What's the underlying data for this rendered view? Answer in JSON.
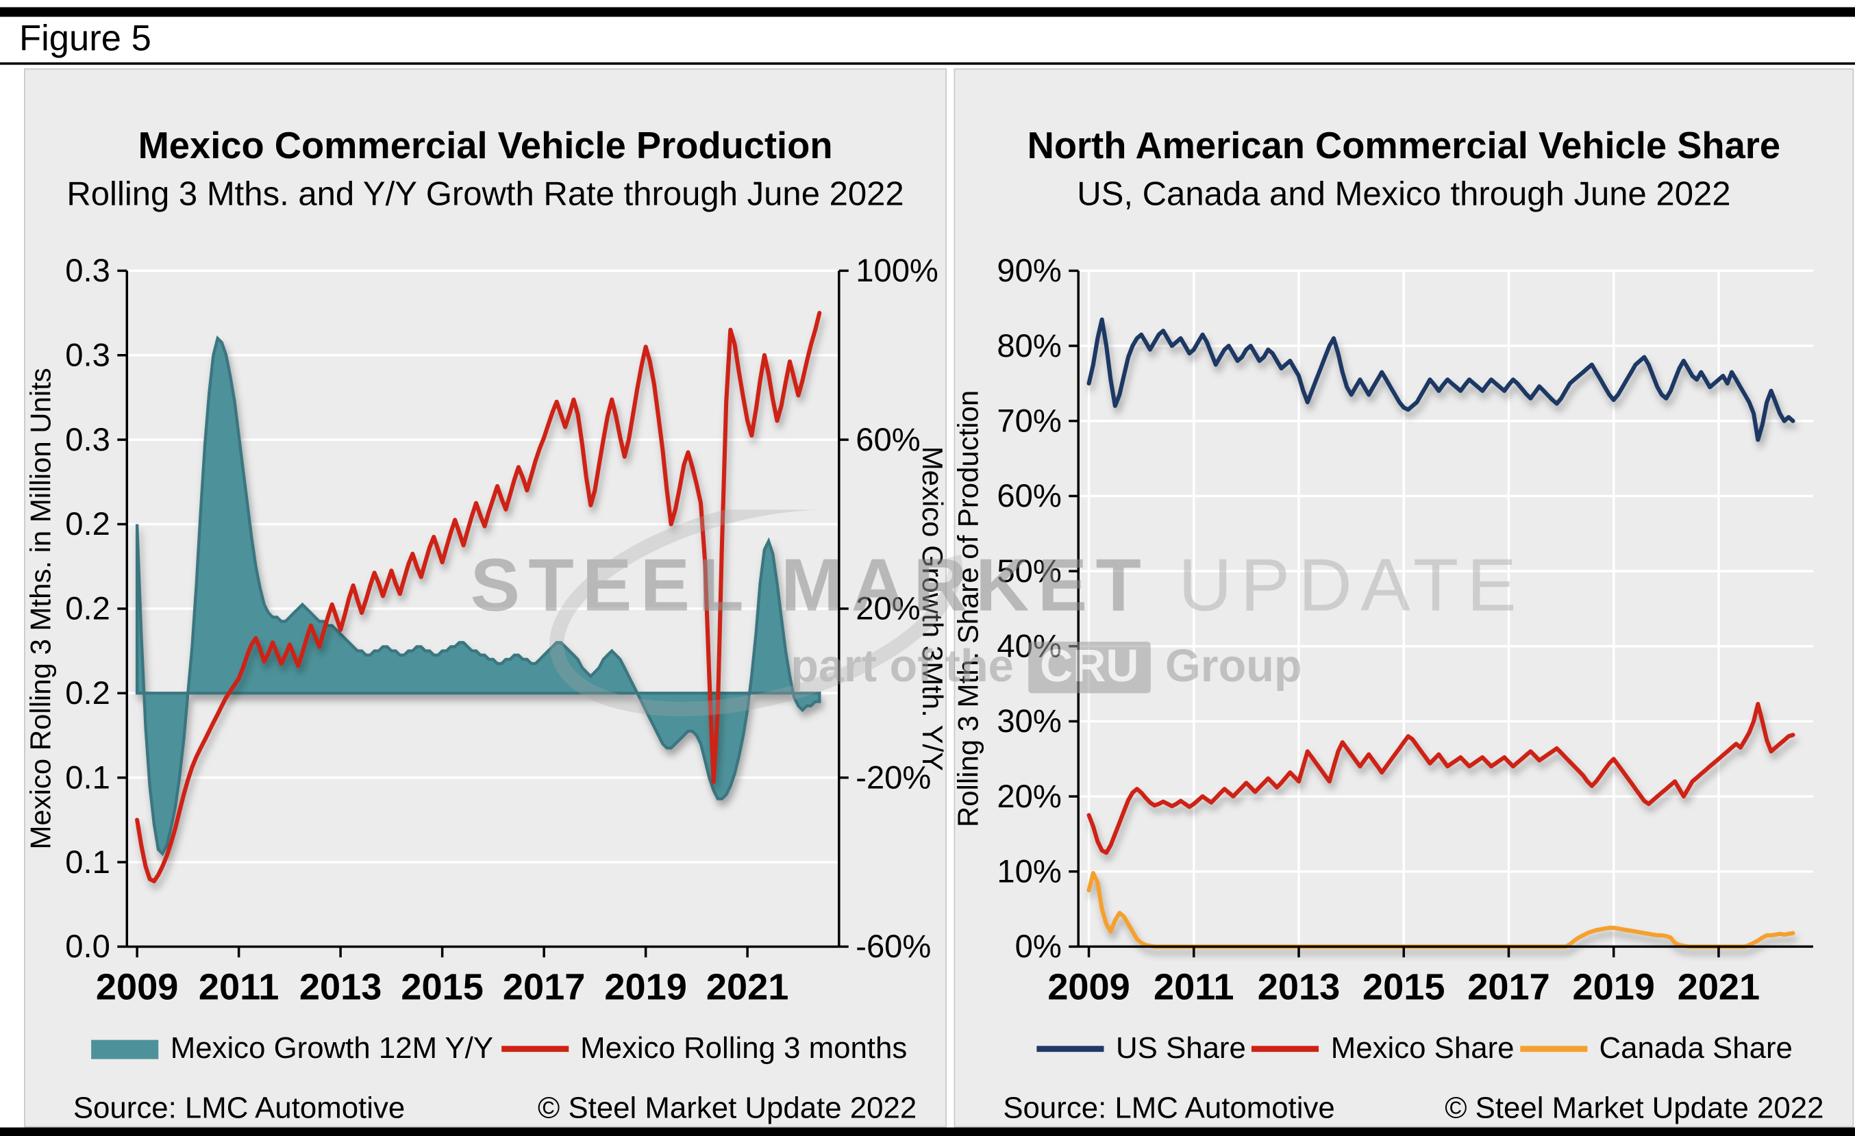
{
  "figure": {
    "label": "Figure 5"
  },
  "watermark": {
    "word1": "STEEL",
    "word2": "MARKET",
    "word3": "UPDATE",
    "tagline_pre": "part of the",
    "tagline_logo": "CRU",
    "tagline_post": "Group"
  },
  "panels": {
    "left": {
      "source": "Source: LMC Automotive",
      "copyright": "© Steel Market Update 2022"
    },
    "right": {
      "source": "Source: LMC Automotive",
      "copyright": "© Steel Market Update 2022"
    }
  },
  "chart_data": [
    {
      "id": "mexico-production",
      "type": "line",
      "title": "Mexico Commercial Vehicle Production",
      "subtitle": "Rolling 3 Mths. and Y/Y Growth Rate through June 2022",
      "x_unit": "monthly, Jan 2009 - Jun 2022",
      "x_start": 2009.0,
      "x_step": 0.0833333,
      "x_domain": [
        2008.8,
        2022.8
      ],
      "x_ticks": [
        2009,
        2011,
        2013,
        2015,
        2017,
        2019,
        2021
      ],
      "grid": {
        "h_lines": 9,
        "v_lines": false
      },
      "axes": {
        "left": {
          "title": "Mexico Rolling 3 Mths. in Million Units",
          "domain": [
            0,
            0.32
          ],
          "title_offset": 64,
          "tick_labels_bottom_up": [
            "0.0",
            "0.1",
            "0.1",
            "0.2",
            "0.2",
            "0.2",
            "0.3",
            "0.3",
            "0.3"
          ]
        },
        "right": {
          "title": "Mexico Growth 3Mth. Y/Y",
          "domain": [
            -60,
            100
          ],
          "title_offset": 70,
          "tick_labels_bottom_up": [
            "-60%",
            "-20%",
            "20%",
            "60%",
            "100%"
          ]
        }
      },
      "series": [
        {
          "name": "Mexico Growth 12M Y/Y",
          "type": "area",
          "axis": "right",
          "unit": "%",
          "color": "#4D929A",
          "edge": "#3A7680",
          "values": [
            40,
            14,
            -8,
            -22,
            -31,
            -37,
            -38,
            -36,
            -32,
            -27,
            -20,
            -11,
            0,
            11,
            26,
            43,
            59,
            71,
            80,
            84,
            83,
            80,
            75,
            69,
            61,
            53,
            45,
            37,
            30,
            25,
            21,
            19,
            18,
            18,
            17,
            17,
            18,
            19,
            20,
            21,
            20,
            19,
            18,
            17,
            17,
            16,
            16,
            15,
            14,
            13,
            12,
            11,
            10,
            10,
            9,
            9,
            10,
            10,
            11,
            11,
            10,
            10,
            9,
            9,
            10,
            10,
            11,
            11,
            10,
            10,
            9,
            9,
            10,
            10,
            11,
            11,
            12,
            12,
            11,
            10,
            10,
            9,
            9,
            8,
            8,
            7,
            7,
            8,
            8,
            9,
            9,
            8,
            8,
            7,
            7,
            8,
            9,
            10,
            11,
            12,
            12,
            11,
            10,
            9,
            8,
            6,
            5,
            4,
            5,
            6,
            8,
            9,
            10,
            9,
            8,
            6,
            4,
            2,
            0,
            -2,
            -4,
            -6,
            -8,
            -10,
            -12,
            -13,
            -13,
            -12,
            -11,
            -10,
            -9,
            -9,
            -10,
            -12,
            -16,
            -20,
            -23,
            -25,
            -25,
            -24,
            -22,
            -19,
            -15,
            -10,
            -4,
            4,
            14,
            26,
            34,
            36,
            33,
            26,
            18,
            10,
            4,
            -1,
            -3,
            -4,
            -3,
            -3,
            -2,
            -2
          ]
        },
        {
          "name": "Mexico Rolling 3 months",
          "type": "line",
          "axis": "left",
          "unit": "million units",
          "color": "#CE2213",
          "values": [
            0.06,
            0.048,
            0.038,
            0.032,
            0.031,
            0.034,
            0.038,
            0.043,
            0.049,
            0.056,
            0.064,
            0.072,
            0.079,
            0.085,
            0.09,
            0.094,
            0.098,
            0.102,
            0.106,
            0.11,
            0.114,
            0.118,
            0.121,
            0.124,
            0.127,
            0.132,
            0.138,
            0.143,
            0.146,
            0.141,
            0.135,
            0.139,
            0.144,
            0.139,
            0.134,
            0.138,
            0.143,
            0.138,
            0.133,
            0.139,
            0.146,
            0.152,
            0.147,
            0.142,
            0.149,
            0.156,
            0.162,
            0.156,
            0.15,
            0.157,
            0.165,
            0.171,
            0.164,
            0.158,
            0.164,
            0.171,
            0.177,
            0.172,
            0.166,
            0.172,
            0.178,
            0.172,
            0.167,
            0.174,
            0.181,
            0.186,
            0.18,
            0.175,
            0.182,
            0.189,
            0.194,
            0.188,
            0.182,
            0.189,
            0.196,
            0.202,
            0.196,
            0.19,
            0.197,
            0.204,
            0.21,
            0.204,
            0.199,
            0.206,
            0.212,
            0.218,
            0.212,
            0.207,
            0.214,
            0.221,
            0.227,
            0.222,
            0.216,
            0.223,
            0.23,
            0.236,
            0.241,
            0.247,
            0.253,
            0.258,
            0.252,
            0.246,
            0.252,
            0.259,
            0.252,
            0.238,
            0.222,
            0.209,
            0.216,
            0.228,
            0.24,
            0.251,
            0.259,
            0.251,
            0.241,
            0.232,
            0.24,
            0.252,
            0.264,
            0.275,
            0.284,
            0.277,
            0.266,
            0.251,
            0.235,
            0.216,
            0.2,
            0.207,
            0.217,
            0.228,
            0.234,
            0.227,
            0.219,
            0.21,
            0.182,
            0.128,
            0.078,
            0.112,
            0.19,
            0.258,
            0.292,
            0.285,
            0.272,
            0.26,
            0.249,
            0.242,
            0.254,
            0.268,
            0.28,
            0.271,
            0.259,
            0.249,
            0.256,
            0.267,
            0.277,
            0.269,
            0.261,
            0.268,
            0.277,
            0.285,
            0.292,
            0.3
          ]
        }
      ]
    },
    {
      "id": "na-share",
      "type": "line",
      "title": "North American Commercial Vehicle Share",
      "subtitle": "US, Canada and Mexico through June 2022",
      "x_unit": "monthly, Jan 2009 - Jun 2022",
      "x_start": 2009.0,
      "x_step": 0.0833333,
      "x_domain": [
        2008.8,
        2022.8
      ],
      "x_ticks": [
        2009,
        2011,
        2013,
        2015,
        2017,
        2019,
        2021
      ],
      "grid": {
        "h_lines": 10,
        "v_lines": true
      },
      "axes": {
        "left": {
          "title": "Rolling 3 Mth. Share of Production",
          "domain": [
            0,
            90
          ],
          "title_offset": 84,
          "tick_labels_bottom_up": [
            "0%",
            "10%",
            "20%",
            "30%",
            "40%",
            "50%",
            "60%",
            "70%",
            "80%",
            "90%"
          ]
        }
      },
      "series": [
        {
          "name": "US Share",
          "type": "line",
          "axis": "left",
          "unit": "%",
          "color": "#1F3864",
          "values": [
            75.0,
            77.5,
            81.0,
            83.5,
            80.0,
            75.5,
            72.0,
            73.5,
            76.0,
            78.5,
            80.0,
            81.0,
            81.5,
            80.5,
            79.5,
            80.5,
            81.5,
            82.0,
            81.0,
            80.0,
            80.5,
            81.0,
            80.0,
            79.0,
            79.5,
            80.5,
            81.5,
            80.5,
            79.0,
            77.5,
            78.5,
            79.5,
            80.0,
            79.0,
            78.0,
            78.5,
            79.5,
            80.0,
            79.0,
            78.0,
            78.5,
            79.5,
            79.0,
            78.0,
            77.0,
            77.5,
            78.0,
            77.0,
            76.0,
            74.0,
            72.5,
            74.0,
            75.5,
            77.0,
            78.5,
            80.0,
            81.0,
            79.0,
            76.5,
            74.5,
            73.5,
            74.5,
            75.5,
            74.5,
            73.5,
            74.5,
            75.5,
            76.5,
            75.5,
            74.5,
            73.5,
            72.5,
            71.8,
            71.5,
            72.0,
            72.5,
            73.5,
            74.5,
            75.5,
            74.8,
            74.0,
            74.8,
            75.5,
            75.0,
            74.5,
            74.0,
            74.8,
            75.5,
            75.0,
            74.5,
            74.0,
            74.8,
            75.5,
            75.0,
            74.5,
            74.0,
            74.8,
            75.5,
            75.0,
            74.3,
            73.6,
            73.0,
            73.8,
            74.6,
            74.0,
            73.4,
            72.8,
            72.3,
            73.0,
            74.0,
            75.0,
            75.5,
            76.0,
            76.5,
            77.0,
            77.5,
            76.5,
            75.5,
            74.5,
            73.5,
            72.8,
            73.5,
            74.5,
            75.5,
            76.5,
            77.5,
            78.0,
            78.5,
            77.5,
            76.0,
            74.5,
            73.5,
            73.0,
            74.0,
            75.5,
            77.0,
            78.0,
            77.0,
            76.0,
            75.5,
            76.5,
            75.5,
            74.5,
            75.0,
            75.5,
            76.0,
            75.0,
            76.5,
            75.5,
            74.5,
            73.5,
            72.5,
            71.0,
            67.5,
            69.5,
            72.5,
            74.0,
            72.5,
            71.0,
            70.0,
            70.5,
            70.0
          ]
        },
        {
          "name": "Mexico Share",
          "type": "line",
          "axis": "left",
          "unit": "%",
          "color": "#CE2213",
          "values": [
            17.5,
            16.0,
            14.0,
            12.8,
            12.5,
            13.5,
            15.0,
            16.5,
            18.0,
            19.5,
            20.5,
            21.0,
            20.5,
            19.8,
            19.2,
            18.8,
            19.0,
            19.3,
            19.0,
            18.7,
            19.0,
            19.4,
            19.0,
            18.6,
            19.0,
            19.5,
            20.0,
            19.6,
            19.2,
            19.8,
            20.4,
            21.0,
            20.5,
            20.0,
            20.6,
            21.2,
            21.8,
            21.2,
            20.6,
            21.2,
            21.8,
            22.4,
            21.8,
            21.2,
            21.8,
            22.5,
            23.2,
            22.6,
            22.0,
            24.0,
            26.0,
            25.2,
            24.4,
            23.6,
            22.8,
            22.0,
            24.0,
            26.0,
            27.2,
            26.4,
            25.6,
            24.8,
            24.0,
            24.8,
            25.6,
            24.8,
            24.0,
            23.2,
            24.0,
            24.8,
            25.6,
            26.4,
            27.2,
            28.0,
            27.6,
            26.8,
            26.0,
            25.2,
            24.4,
            25.0,
            25.6,
            24.8,
            24.0,
            24.4,
            24.8,
            25.2,
            24.6,
            24.0,
            24.4,
            24.8,
            25.2,
            24.6,
            24.0,
            24.4,
            24.8,
            25.2,
            24.6,
            24.0,
            24.5,
            25.0,
            25.5,
            26.0,
            25.4,
            24.8,
            25.2,
            25.6,
            26.0,
            26.4,
            25.8,
            25.2,
            24.6,
            24.0,
            23.4,
            22.8,
            22.0,
            21.4,
            22.0,
            22.8,
            23.6,
            24.4,
            25.0,
            24.2,
            23.4,
            22.6,
            21.8,
            21.0,
            20.2,
            19.4,
            19.0,
            19.5,
            20.0,
            20.5,
            21.0,
            21.5,
            22.0,
            21.0,
            20.0,
            21.0,
            22.0,
            22.5,
            23.0,
            23.5,
            24.0,
            24.5,
            25.0,
            25.5,
            26.0,
            26.5,
            27.0,
            26.5,
            27.5,
            28.5,
            30.0,
            32.3,
            30.0,
            27.5,
            26.0,
            26.5,
            27.0,
            27.5,
            28.0,
            28.2
          ]
        },
        {
          "name": "Canada Share",
          "type": "line",
          "axis": "left",
          "unit": "%",
          "color": "#F5A02F",
          "values": [
            7.5,
            9.8,
            8.5,
            5.0,
            3.0,
            2.0,
            3.5,
            4.5,
            4.0,
            3.0,
            2.0,
            1.0,
            0.5,
            0.2,
            0.1,
            0,
            0,
            0,
            0,
            0,
            0,
            0,
            0,
            0,
            0,
            0,
            0,
            0,
            0,
            0,
            0,
            0,
            0,
            0,
            0,
            0,
            0,
            0,
            0,
            0,
            0,
            0,
            0,
            0,
            0,
            0,
            0,
            0,
            0,
            0,
            0,
            0,
            0,
            0,
            0,
            0,
            0,
            0,
            0,
            0,
            0,
            0,
            0,
            0,
            0,
            0,
            0,
            0,
            0,
            0,
            0,
            0,
            0,
            0,
            0,
            0,
            0,
            0,
            0,
            0,
            0,
            0,
            0,
            0,
            0,
            0,
            0,
            0,
            0,
            0,
            0,
            0,
            0,
            0,
            0,
            0,
            0,
            0,
            0,
            0,
            0,
            0,
            0,
            0,
            0,
            0,
            0,
            0,
            0,
            0,
            0.3,
            0.8,
            1.2,
            1.5,
            1.8,
            2.0,
            2.2,
            2.3,
            2.4,
            2.5,
            2.5,
            2.4,
            2.3,
            2.2,
            2.1,
            2.0,
            1.9,
            1.8,
            1.7,
            1.6,
            1.5,
            1.5,
            1.4,
            1.2,
            0.5,
            0.2,
            0.1,
            0,
            0,
            0,
            0,
            0,
            0,
            0,
            0,
            0,
            0,
            0,
            0,
            0,
            0,
            0.2,
            0.5,
            0.8,
            1.2,
            1.5,
            1.5,
            1.6,
            1.7,
            1.6,
            1.7,
            1.8
          ]
        }
      ]
    }
  ]
}
